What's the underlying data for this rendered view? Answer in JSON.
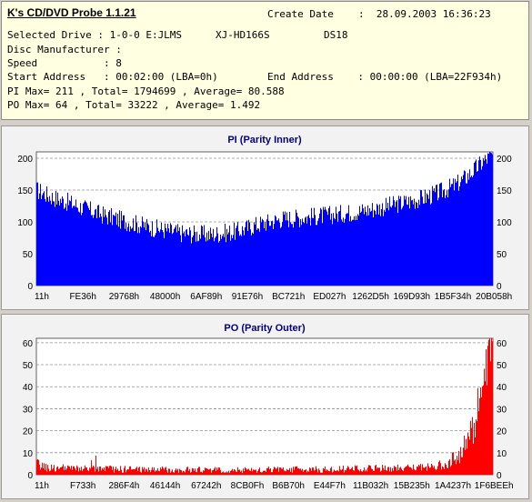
{
  "info": {
    "app_title": "K's CD/DVD Probe 1.1.21",
    "create_date_label": "Create Date",
    "create_date_value": ":  28.09.2003 16:36:23",
    "selected_drive_label": "Selected Drive : 1-0-0 E:JLMS",
    "drive_model": "XJ-HD166S",
    "drive_firmware": "DS18",
    "disc_manufacturer_line": "Disc Manufacturer :",
    "speed_line": "Speed           : 8",
    "start_address_line": "Start Address   : 00:02:00 (LBA=0h)",
    "end_address_line": "End Address    : 00:00:00 (LBA=22F934h)",
    "pi_summary": "PI Max= 211 , Total= 1794699 , Average= 80.588",
    "po_summary": "PO Max= 64 , Total= 33222 , Average= 1.492"
  },
  "colors": {
    "pi_fill": "#0000ff",
    "po_fill": "#ff0000",
    "title_color": "#000080",
    "plot_bg": "#ffffff",
    "grid": "#9090a0"
  },
  "chart_data": [
    {
      "type": "area",
      "title": "PI (Parity Inner)",
      "ylim": [
        0,
        210
      ],
      "yticks": [
        0,
        50,
        100,
        150,
        200
      ],
      "xticks": [
        "11h",
        "FE36h",
        "29768h",
        "48000h",
        "6AF89h",
        "91E76h",
        "BC721h",
        "ED027h",
        "1262D5h",
        "169D93h",
        "1B5F34h",
        "20B058h"
      ],
      "grid": true,
      "envelope": [
        {
          "x": 0.0,
          "y": 150
        },
        {
          "x": 0.03,
          "y": 140
        },
        {
          "x": 0.08,
          "y": 128
        },
        {
          "x": 0.14,
          "y": 112
        },
        {
          "x": 0.2,
          "y": 100
        },
        {
          "x": 0.26,
          "y": 90
        },
        {
          "x": 0.32,
          "y": 82
        },
        {
          "x": 0.38,
          "y": 80
        },
        {
          "x": 0.44,
          "y": 85
        },
        {
          "x": 0.48,
          "y": 95
        },
        {
          "x": 0.54,
          "y": 105
        },
        {
          "x": 0.6,
          "y": 108
        },
        {
          "x": 0.66,
          "y": 112
        },
        {
          "x": 0.72,
          "y": 118
        },
        {
          "x": 0.78,
          "y": 126
        },
        {
          "x": 0.84,
          "y": 136
        },
        {
          "x": 0.88,
          "y": 145
        },
        {
          "x": 0.92,
          "y": 158
        },
        {
          "x": 0.95,
          "y": 175
        },
        {
          "x": 0.98,
          "y": 195
        },
        {
          "x": 1.0,
          "y": 205
        }
      ]
    },
    {
      "type": "area",
      "title": "PO (Parity Outer)",
      "ylim": [
        0,
        62
      ],
      "yticks": [
        0,
        10,
        20,
        30,
        40,
        50,
        60
      ],
      "xticks": [
        "11h",
        "F733h",
        "286F4h",
        "46144h",
        "67242h",
        "8CB0Fh",
        "B6B70h",
        "E44F7h",
        "11B032h",
        "15B235h",
        "1A4237h",
        "1F6BEEh"
      ],
      "grid": true,
      "envelope": [
        {
          "x": 0.0,
          "y": 4
        },
        {
          "x": 0.02,
          "y": 2.5
        },
        {
          "x": 0.1,
          "y": 2
        },
        {
          "x": 0.4,
          "y": 1.5
        },
        {
          "x": 0.7,
          "y": 2
        },
        {
          "x": 0.85,
          "y": 2.5
        },
        {
          "x": 0.9,
          "y": 4
        },
        {
          "x": 0.93,
          "y": 8
        },
        {
          "x": 0.95,
          "y": 14
        },
        {
          "x": 0.97,
          "y": 25
        },
        {
          "x": 0.98,
          "y": 40
        },
        {
          "x": 0.99,
          "y": 55
        },
        {
          "x": 1.0,
          "y": 60
        }
      ]
    }
  ]
}
